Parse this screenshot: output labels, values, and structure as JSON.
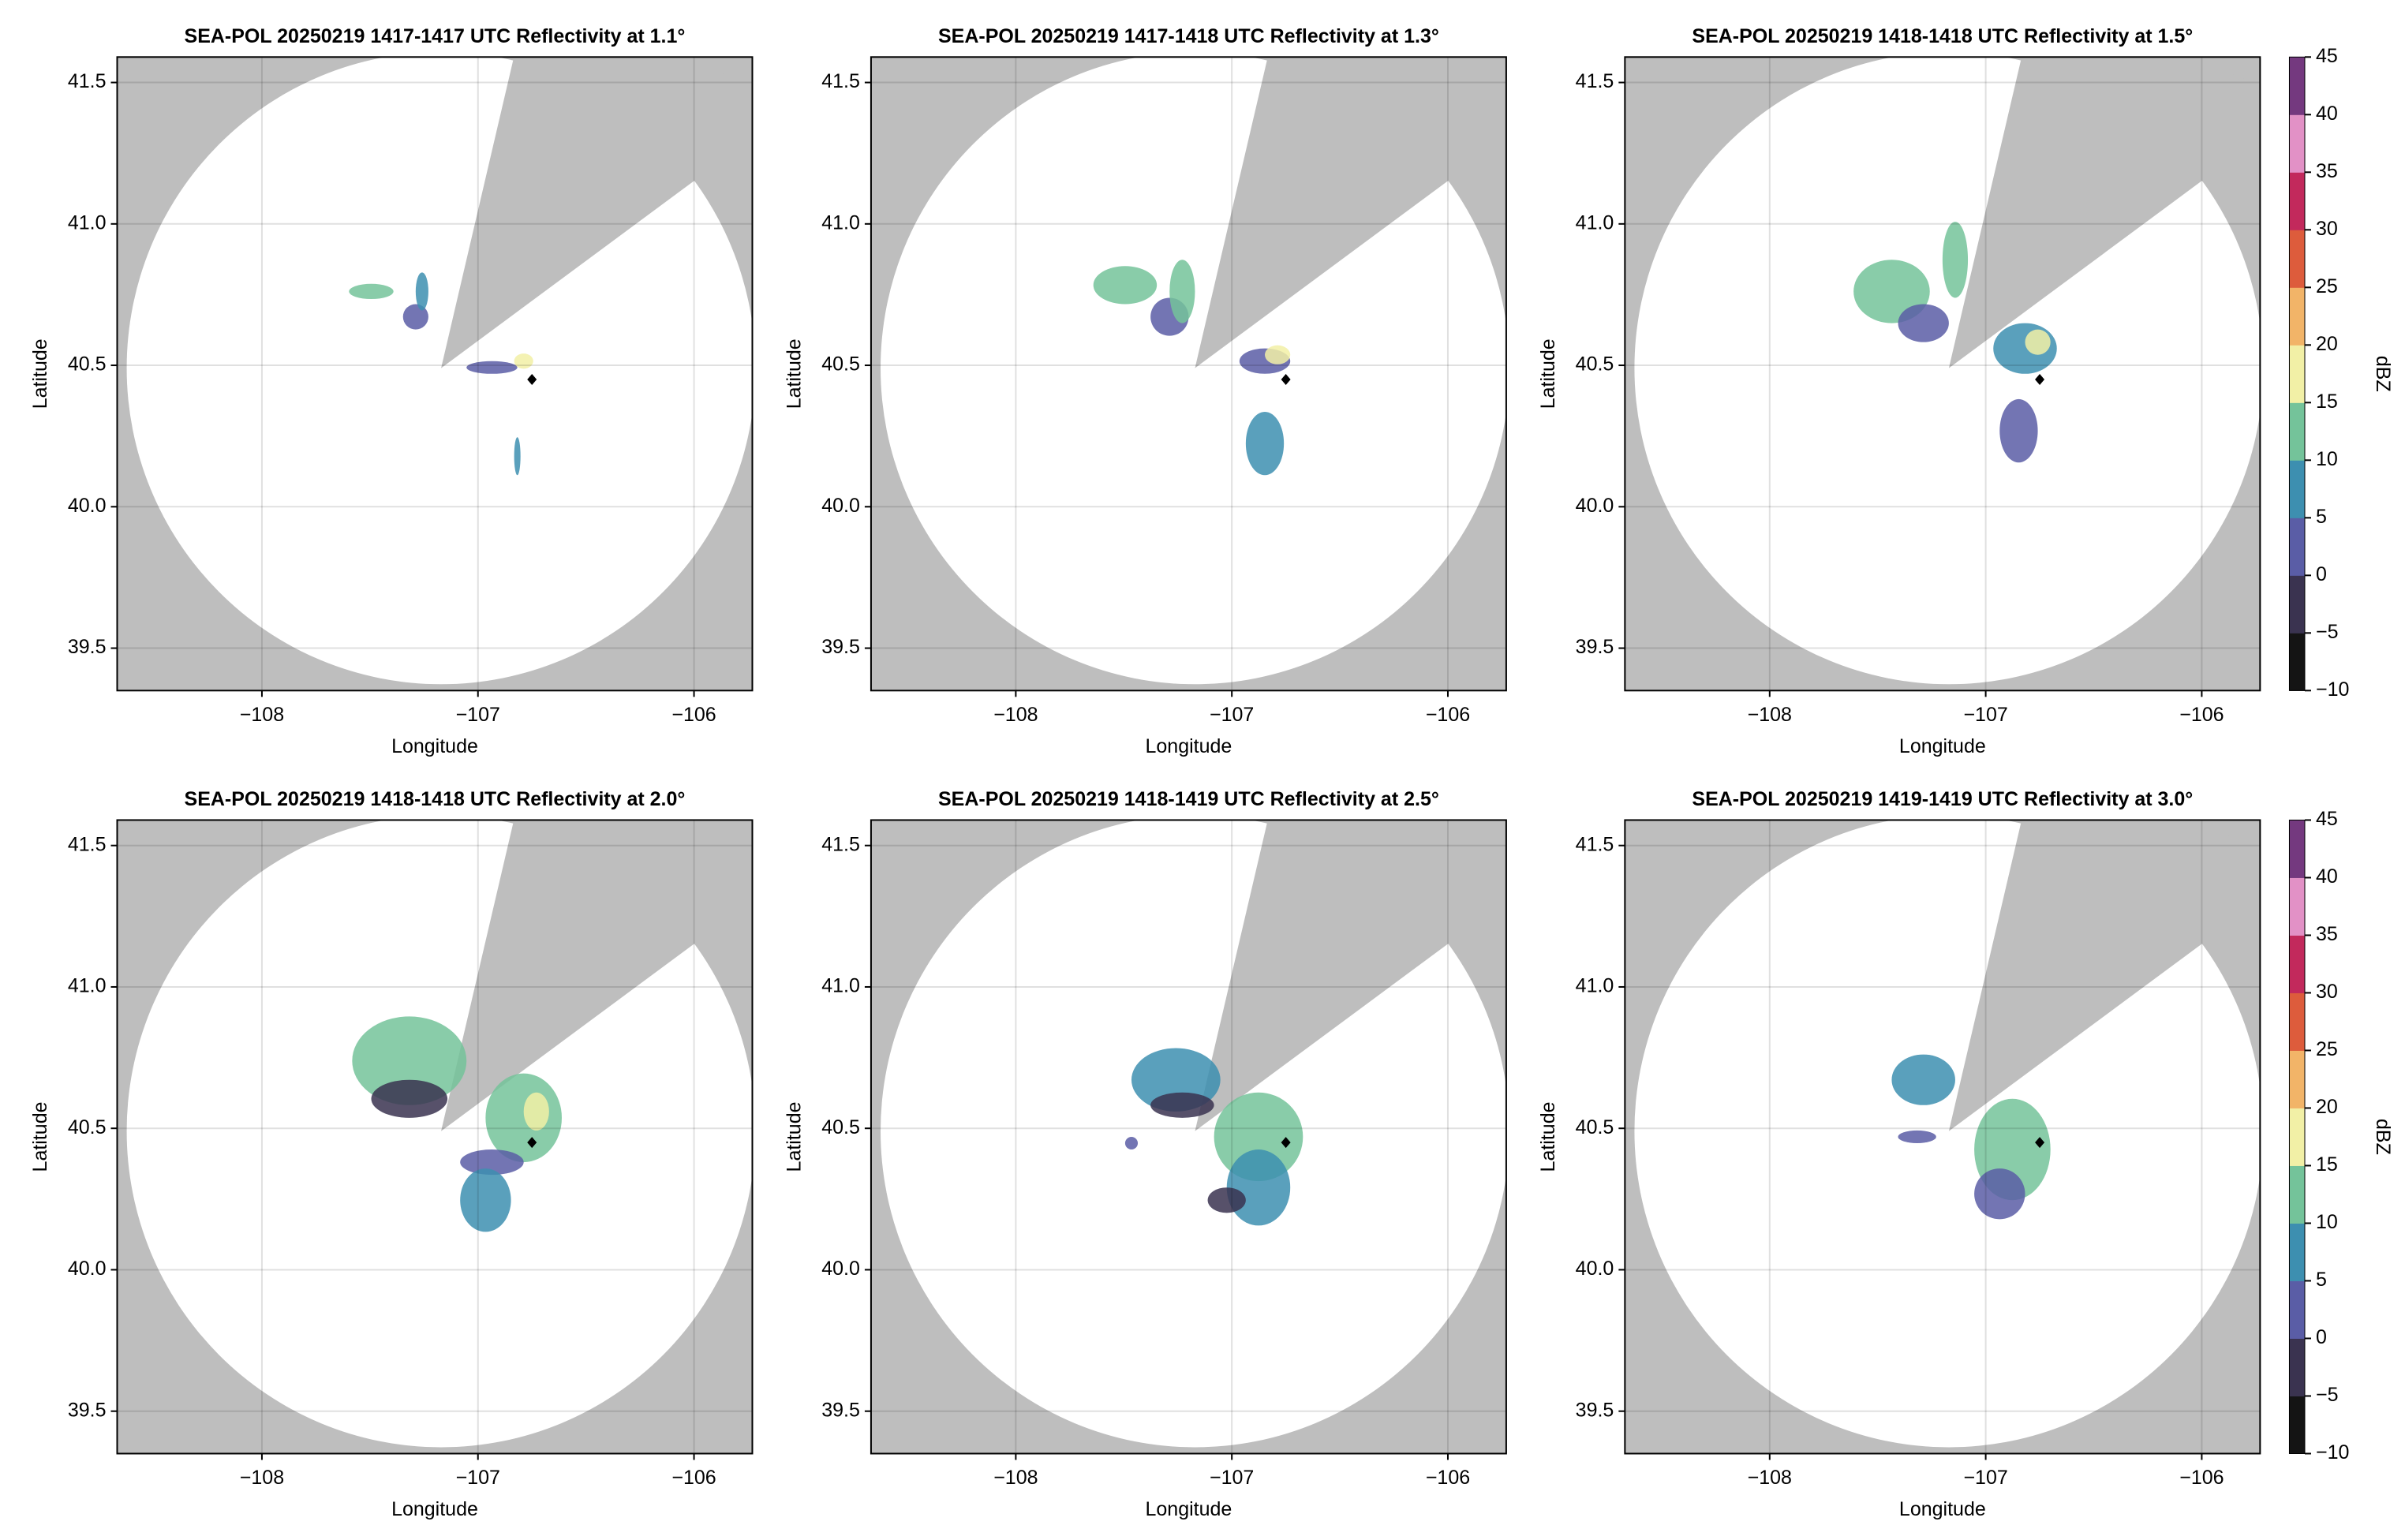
{
  "chart_data": [
    {
      "type": "radar-ppi",
      "title": "SEA-POL 20250219 1417-1417 UTC Reflectivity at 1.1°",
      "xlabel": "Longitude",
      "ylabel": "Latitude",
      "xlim": [
        -108.67,
        -105.73
      ],
      "ylim": [
        39.35,
        41.59
      ],
      "xticks": [
        {
          "value": -108,
          "label": "−108"
        },
        {
          "value": -107,
          "label": "−107"
        },
        {
          "value": -106,
          "label": "−106"
        }
      ],
      "yticks": [
        39.5,
        {
          "value": 40.0,
          "label": "40.0"
        },
        40.5,
        {
          "value": 41.0,
          "label": "41.0"
        },
        41.5
      ],
      "grid": true,
      "marker": [
        -106.75,
        40.45
      ]
    },
    {
      "type": "radar-ppi",
      "title": "SEA-POL 20250219 1417-1418 UTC Reflectivity at 1.3°",
      "xlabel": "Longitude",
      "ylabel": "Latitude",
      "xlim": [
        -108.67,
        -105.73
      ],
      "ylim": [
        39.35,
        41.59
      ],
      "xticks": [
        {
          "value": -108,
          "label": "−108"
        },
        {
          "value": -107,
          "label": "−107"
        },
        {
          "value": -106,
          "label": "−106"
        }
      ],
      "yticks": [
        39.5,
        {
          "value": 40.0,
          "label": "40.0"
        },
        40.5,
        {
          "value": 41.0,
          "label": "41.0"
        },
        41.5
      ],
      "grid": true,
      "marker": [
        -106.75,
        40.45
      ]
    },
    {
      "type": "radar-ppi",
      "title": "SEA-POL 20250219 1418-1418 UTC Reflectivity at 1.5°",
      "xlabel": "Longitude",
      "ylabel": "Latitude",
      "xlim": [
        -108.67,
        -105.73
      ],
      "ylim": [
        39.35,
        41.59
      ],
      "xticks": [
        {
          "value": -108,
          "label": "−108"
        },
        {
          "value": -107,
          "label": "−107"
        },
        {
          "value": -106,
          "label": "−106"
        }
      ],
      "yticks": [
        39.5,
        {
          "value": 40.0,
          "label": "40.0"
        },
        40.5,
        {
          "value": 41.0,
          "label": "41.0"
        },
        41.5
      ],
      "grid": true,
      "marker": [
        -106.75,
        40.45
      ],
      "colorbar": {
        "label": "dBZ",
        "lim": [
          -10,
          45
        ],
        "ticks": [
          {
            "value": -10,
            "label": "−10"
          },
          {
            "value": -5,
            "label": "−5"
          },
          0,
          5,
          10,
          15,
          20,
          25,
          30,
          35,
          40,
          45
        ],
        "colors": [
          "#141414",
          "#3a3350",
          "#5a5da6",
          "#3d8fb0",
          "#74c39a",
          "#f2f0a6",
          "#f2b468",
          "#dd5c3c",
          "#c2295c",
          "#e291c6",
          "#74397f"
        ]
      }
    },
    {
      "type": "radar-ppi",
      "title": "SEA-POL 20250219 1418-1418 UTC Reflectivity at 2.0°",
      "xlabel": "Longitude",
      "ylabel": "Latitude",
      "xlim": [
        -108.67,
        -105.73
      ],
      "ylim": [
        39.35,
        41.59
      ],
      "xticks": [
        {
          "value": -108,
          "label": "−108"
        },
        {
          "value": -107,
          "label": "−107"
        },
        {
          "value": -106,
          "label": "−106"
        }
      ],
      "yticks": [
        39.5,
        {
          "value": 40.0,
          "label": "40.0"
        },
        40.5,
        {
          "value": 41.0,
          "label": "41.0"
        },
        41.5
      ],
      "grid": true,
      "marker": [
        -106.75,
        40.45
      ]
    },
    {
      "type": "radar-ppi",
      "title": "SEA-POL 20250219 1418-1419 UTC Reflectivity at 2.5°",
      "xlabel": "Longitude",
      "ylabel": "Latitude",
      "xlim": [
        -108.67,
        -105.73
      ],
      "ylim": [
        39.35,
        41.59
      ],
      "xticks": [
        {
          "value": -108,
          "label": "−108"
        },
        {
          "value": -107,
          "label": "−107"
        },
        {
          "value": -106,
          "label": "−106"
        }
      ],
      "yticks": [
        39.5,
        {
          "value": 40.0,
          "label": "40.0"
        },
        40.5,
        {
          "value": 41.0,
          "label": "41.0"
        },
        41.5
      ],
      "grid": true,
      "marker": [
        -106.75,
        40.45
      ]
    },
    {
      "type": "radar-ppi",
      "title": "SEA-POL 20250219 1419-1419 UTC Reflectivity at 3.0°",
      "xlabel": "Longitude",
      "ylabel": "Latitude",
      "xlim": [
        -108.67,
        -105.73
      ],
      "ylim": [
        39.35,
        41.59
      ],
      "xticks": [
        {
          "value": -108,
          "label": "−108"
        },
        {
          "value": -107,
          "label": "−107"
        },
        {
          "value": -106,
          "label": "−106"
        }
      ],
      "yticks": [
        39.5,
        {
          "value": 40.0,
          "label": "40.0"
        },
        40.5,
        {
          "value": 41.0,
          "label": "41.0"
        },
        41.5
      ],
      "grid": true,
      "marker": [
        -106.75,
        40.45
      ],
      "colorbar": {
        "label": "dBZ",
        "lim": [
          -10,
          45
        ],
        "ticks": [
          {
            "value": -10,
            "label": "−10"
          },
          {
            "value": -5,
            "label": "−5"
          },
          0,
          5,
          10,
          15,
          20,
          25,
          30,
          35,
          40,
          45
        ],
        "colors": [
          "#141414",
          "#3a3350",
          "#5a5da6",
          "#3d8fb0",
          "#74c39a",
          "#f2f0a6",
          "#f2b468",
          "#dd5c3c",
          "#c2295c",
          "#e291c6",
          "#74397f"
        ]
      }
    }
  ]
}
